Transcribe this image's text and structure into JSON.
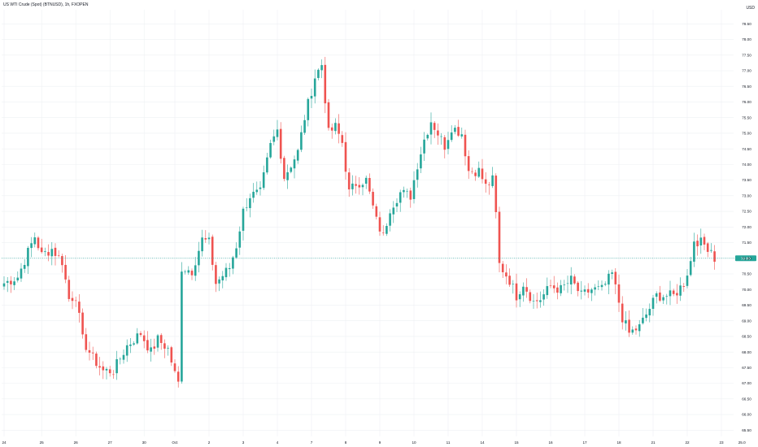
{
  "header": {
    "symbol_title": "US WTI Crude (Spot) (BTNUSD), 1h, FXOPEN",
    "currency": "USD"
  },
  "colors": {
    "up": "#26a69a",
    "down": "#ef5350",
    "up_wick": "#26a69a",
    "down_wick": "#ef5350",
    "grid": "#eef0f3",
    "axis_text": "#131722",
    "last_price_line": "#26a69a"
  },
  "chart_data": {
    "type": "candlestick",
    "title": "",
    "xlabel": "",
    "ylabel": "",
    "ylim": [
      65.3,
      78.95
    ],
    "y_ticks": [
      65.5,
      66.0,
      66.5,
      67.0,
      67.5,
      68.0,
      68.5,
      69.0,
      69.5,
      70.0,
      70.5,
      71.0,
      71.5,
      72.0,
      72.5,
      73.0,
      73.5,
      74.0,
      74.5,
      75.0,
      75.5,
      76.0,
      76.5,
      77.0,
      77.5,
      78.0,
      78.5
    ],
    "y_tick_labels": [
      "65.50",
      "66.00",
      "66.50",
      "67.00",
      "67.50",
      "68.00",
      "68.50",
      "69.00",
      "69.50",
      "70.00",
      "70.50",
      "71.00",
      "71.50",
      "72.00",
      "72.50",
      "73.00",
      "73.50",
      "74.00",
      "74.50",
      "75.00",
      "75.50",
      "76.00",
      "76.50",
      "77.00",
      "77.50",
      "78.00",
      "78.50"
    ],
    "x_count": 207,
    "x_ticks": [
      {
        "i": 0,
        "label": "24"
      },
      {
        "i": 11,
        "label": "25"
      },
      {
        "i": 21,
        "label": "26"
      },
      {
        "i": 31,
        "label": "27"
      },
      {
        "i": 41,
        "label": "30"
      },
      {
        "i": 50,
        "label": "Oct"
      },
      {
        "i": 60,
        "label": "2"
      },
      {
        "i": 70,
        "label": "3"
      },
      {
        "i": 80,
        "label": "4"
      },
      {
        "i": 90,
        "label": "7"
      },
      {
        "i": 100,
        "label": "8"
      },
      {
        "i": 110,
        "label": "9"
      },
      {
        "i": 120,
        "label": "10"
      },
      {
        "i": 130,
        "label": "11"
      },
      {
        "i": 140,
        "label": "14"
      },
      {
        "i": 150,
        "label": "15"
      },
      {
        "i": 160,
        "label": "16"
      },
      {
        "i": 170,
        "label": "17"
      },
      {
        "i": 180,
        "label": "18"
      },
      {
        "i": 190,
        "label": "21"
      },
      {
        "i": 200,
        "label": "22"
      },
      {
        "i": 210,
        "label": "23"
      },
      {
        "i": 216,
        "label": "25.0"
      }
    ],
    "last_price": 71.0,
    "last_price_label": "71.00",
    "anchors": [
      [
        0,
        70.2
      ],
      [
        4,
        70.4
      ],
      [
        7,
        71.2
      ],
      [
        9,
        71.7
      ],
      [
        11,
        71.1
      ],
      [
        14,
        71.3
      ],
      [
        17,
        70.9
      ],
      [
        19,
        69.7
      ],
      [
        21,
        69.8
      ],
      [
        23,
        68.4
      ],
      [
        26,
        67.8
      ],
      [
        29,
        67.4
      ],
      [
        32,
        67.4
      ],
      [
        36,
        68.2
      ],
      [
        40,
        68.6
      ],
      [
        43,
        68.0
      ],
      [
        45,
        68.4
      ],
      [
        48,
        68.1
      ],
      [
        50,
        67.3
      ],
      [
        51,
        67.0
      ],
      [
        52,
        70.7
      ],
      [
        55,
        70.6
      ],
      [
        58,
        71.6
      ],
      [
        60,
        71.5
      ],
      [
        62,
        70.2
      ],
      [
        66,
        70.7
      ],
      [
        68,
        71.4
      ],
      [
        70,
        72.5
      ],
      [
        72,
        73.0
      ],
      [
        75,
        73.1
      ],
      [
        78,
        74.6
      ],
      [
        80,
        75.1
      ],
      [
        82,
        73.6
      ],
      [
        86,
        74.4
      ],
      [
        88,
        75.5
      ],
      [
        91,
        76.8
      ],
      [
        93,
        77.2
      ],
      [
        95,
        75.0
      ],
      [
        97,
        75.2
      ],
      [
        99,
        74.7
      ],
      [
        101,
        73.1
      ],
      [
        103,
        73.4
      ],
      [
        106,
        73.5
      ],
      [
        109,
        72.2
      ],
      [
        111,
        71.7
      ],
      [
        113,
        72.6
      ],
      [
        116,
        73.1
      ],
      [
        119,
        73.0
      ],
      [
        121,
        74.0
      ],
      [
        123,
        74.8
      ],
      [
        125,
        75.4
      ],
      [
        127,
        75.0
      ],
      [
        129,
        74.6
      ],
      [
        131,
        75.2
      ],
      [
        134,
        75.0
      ],
      [
        136,
        73.8
      ],
      [
        139,
        73.8
      ],
      [
        141,
        73.3
      ],
      [
        143,
        73.5
      ],
      [
        144,
        72.4
      ],
      [
        145,
        70.8
      ],
      [
        148,
        70.3
      ],
      [
        150,
        69.8
      ],
      [
        152,
        70.2
      ],
      [
        155,
        69.6
      ],
      [
        157,
        69.7
      ],
      [
        160,
        70.1
      ],
      [
        163,
        70.0
      ],
      [
        166,
        70.3
      ],
      [
        169,
        69.8
      ],
      [
        172,
        70.0
      ],
      [
        175,
        70.0
      ],
      [
        178,
        70.5
      ],
      [
        180,
        69.6
      ],
      [
        181,
        69.1
      ],
      [
        183,
        68.6
      ],
      [
        186,
        68.8
      ],
      [
        188,
        69.2
      ],
      [
        191,
        69.8
      ],
      [
        193,
        69.8
      ],
      [
        196,
        69.8
      ],
      [
        199,
        70.2
      ],
      [
        201,
        70.9
      ],
      [
        202,
        71.6
      ],
      [
        204,
        71.5
      ],
      [
        207,
        71.3
      ],
      [
        208,
        71.0
      ]
    ]
  }
}
